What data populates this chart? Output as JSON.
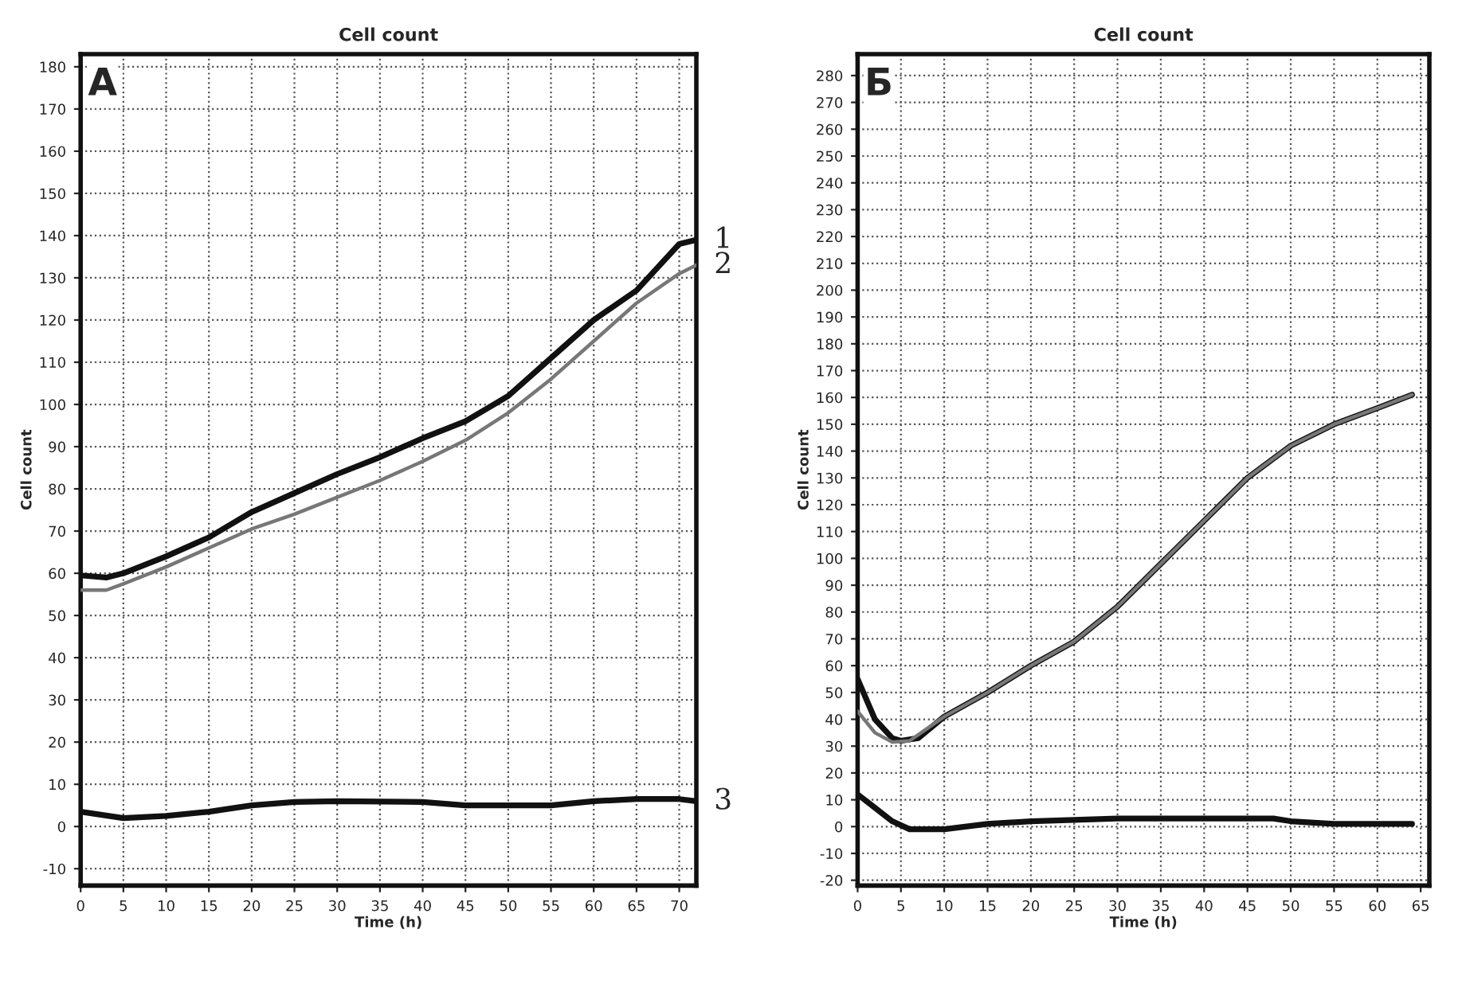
{
  "chart_data": [
    {
      "type": "line",
      "title": "Cell count",
      "xlabel": "Time (h)",
      "ylabel": "Cell count",
      "annotations": [
        "A"
      ],
      "xlim": [
        0,
        72
      ],
      "xticks": [
        0,
        5,
        10,
        15,
        20,
        25,
        30,
        35,
        40,
        45,
        50,
        55,
        60,
        65,
        70
      ],
      "ylim": [
        -14,
        183
      ],
      "yticks": [
        -10,
        0,
        10,
        20,
        30,
        40,
        50,
        60,
        70,
        80,
        90,
        100,
        110,
        120,
        130,
        140,
        150,
        160,
        170,
        180
      ],
      "grid": true,
      "line_style": "solid",
      "marker": "none",
      "series": [
        {
          "name": "1",
          "color": "#111111",
          "x": [
            0,
            3,
            5,
            10,
            15,
            20,
            25,
            30,
            35,
            40,
            45,
            50,
            55,
            60,
            65,
            70,
            72
          ],
          "values": [
            59.5,
            59,
            60,
            64,
            68.5,
            74.5,
            79,
            83.5,
            87.5,
            92,
            96,
            102,
            111,
            120,
            127,
            138,
            139
          ]
        },
        {
          "name": "2",
          "color": "#777777",
          "x": [
            0,
            3,
            5,
            10,
            15,
            20,
            25,
            30,
            35,
            40,
            45,
            50,
            55,
            60,
            65,
            70,
            72
          ],
          "values": [
            56,
            56,
            57.5,
            61.5,
            66,
            70.5,
            74,
            78,
            82,
            86.5,
            91.5,
            98,
            106,
            115,
            124,
            131,
            133
          ]
        },
        {
          "name": "3",
          "color": "#111111",
          "x": [
            0,
            5,
            10,
            15,
            20,
            25,
            30,
            40,
            45,
            55,
            60,
            65,
            70,
            72
          ],
          "values": [
            3.5,
            2,
            2.5,
            3.5,
            5,
            5.8,
            6,
            5.8,
            5,
            5,
            6,
            6.5,
            6.5,
            6
          ]
        }
      ]
    },
    {
      "type": "line",
      "title": "Cell count",
      "xlabel": "Time (h)",
      "ylabel": "Cell count",
      "annotations": [
        "Б"
      ],
      "xlim": [
        0,
        66
      ],
      "xticks": [
        0,
        5,
        10,
        15,
        20,
        25,
        30,
        35,
        40,
        45,
        50,
        55,
        60,
        65
      ],
      "ylim": [
        -22,
        288
      ],
      "yticks": [
        -20,
        -10,
        0,
        10,
        20,
        30,
        40,
        50,
        60,
        70,
        80,
        90,
        100,
        110,
        120,
        130,
        140,
        150,
        160,
        170,
        180,
        190,
        200,
        210,
        220,
        230,
        240,
        250,
        260,
        270,
        280
      ],
      "grid": true,
      "line_style": "solid",
      "marker": "none",
      "series": [
        {
          "color": "#111111",
          "x": [
            0,
            2,
            4,
            5,
            7,
            10,
            15,
            20,
            25,
            30,
            35,
            40,
            45,
            50,
            55,
            60,
            64
          ],
          "values": [
            55,
            40,
            33,
            32,
            33,
            41,
            50,
            60,
            69,
            82,
            98,
            114,
            130,
            142,
            150,
            156,
            161
          ]
        },
        {
          "color": "#777777",
          "x": [
            0,
            2,
            4,
            6,
            10,
            15,
            20,
            25,
            30,
            35,
            40,
            45,
            50,
            55,
            60,
            64
          ],
          "values": [
            43,
            35,
            31.5,
            32,
            41,
            50,
            60,
            69,
            82,
            98,
            114,
            130,
            142,
            150,
            156,
            161
          ]
        },
        {
          "color": "#111111",
          "x": [
            0,
            2,
            4,
            6,
            10,
            15,
            20,
            30,
            40,
            48,
            50,
            55,
            64
          ],
          "values": [
            12,
            7,
            2,
            -1,
            -1,
            1,
            2,
            3,
            3,
            3,
            2,
            1,
            1
          ]
        }
      ]
    }
  ]
}
